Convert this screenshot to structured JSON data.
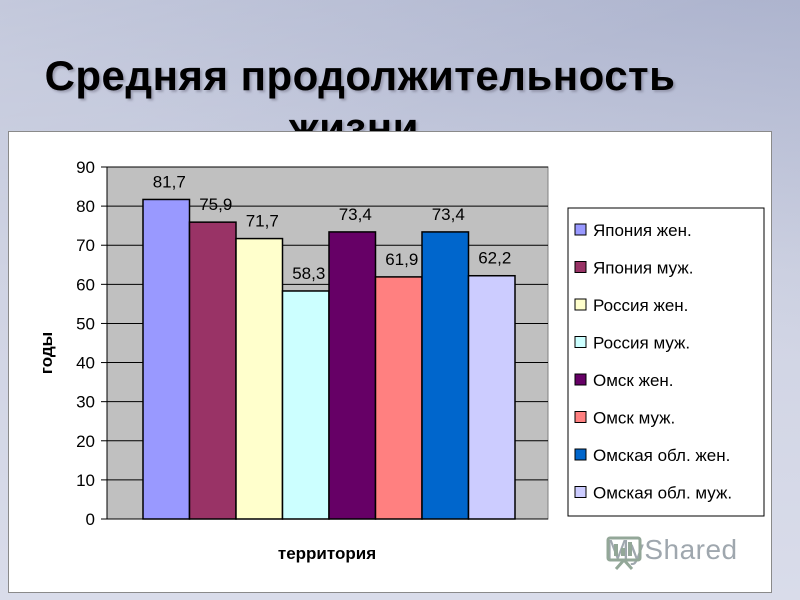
{
  "slide": {
    "title_line1": "Средняя продолжительность",
    "title_line2": "жизни."
  },
  "logo": {
    "text": "MyShared",
    "icon": "presentation-board-icon"
  },
  "colors": {
    "plot_background": "#c0c0c0",
    "panel_background": "#ffffff"
  },
  "chart_data": {
    "type": "bar",
    "title": "",
    "xlabel": "территория",
    "ylabel": "годы",
    "ylim": [
      0,
      90
    ],
    "yticks": [
      0,
      10,
      20,
      30,
      40,
      50,
      60,
      70,
      80,
      90
    ],
    "grid": true,
    "legend_position": "right",
    "series": [
      {
        "name": "Япония жен.",
        "value": 81.7,
        "label": "81,7",
        "color": "#9999ff"
      },
      {
        "name": "Япония муж.",
        "value": 75.9,
        "label": "75,9",
        "color": "#993366"
      },
      {
        "name": "Россия жен.",
        "value": 71.7,
        "label": "71,7",
        "color": "#ffffcc"
      },
      {
        "name": "Россия муж.",
        "value": 58.3,
        "label": "58,3",
        "color": "#ccffff"
      },
      {
        "name": "Омск жен.",
        "value": 73.4,
        "label": "73,4",
        "color": "#660066"
      },
      {
        "name": "Омск муж.",
        "value": 61.9,
        "label": "61,9",
        "color": "#ff8080"
      },
      {
        "name": "Омская обл. жен.",
        "value": 73.4,
        "label": "73,4",
        "color": "#0066cc"
      },
      {
        "name": "Омская обл. муж.",
        "value": 62.2,
        "label": "62,2",
        "color": "#ccccff"
      }
    ]
  }
}
